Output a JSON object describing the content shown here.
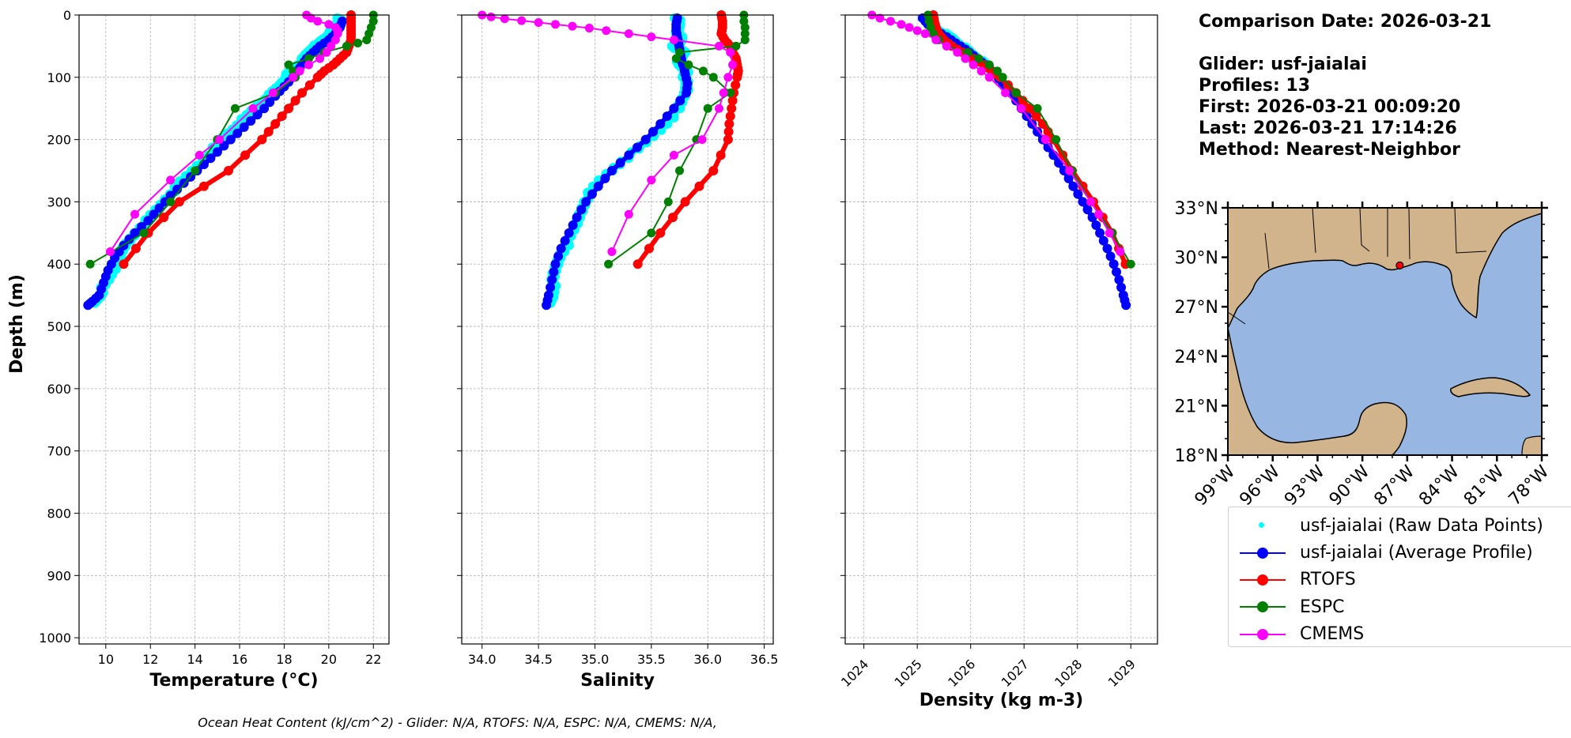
{
  "info": {
    "comparison_date": "Comparison Date: 2026-03-21",
    "glider": "Glider: usf-jaialai",
    "profiles": "Profiles: 13",
    "first": "First: 2026-03-21 00:09:20",
    "last": "Last: 2026-03-21 17:14:26",
    "method": "Method: Nearest-Neighbor"
  },
  "footer": "Ocean Heat Content (kJ/cm^2) - Glider: N/A,  RTOFS: N/A,  ESPC: N/A,  CMEMS: N/A,",
  "legend": [
    {
      "label": "usf-jaialai (Raw Data Points)",
      "color": "#00ffff",
      "style": "dot"
    },
    {
      "label": "usf-jaialai (Average Profile)",
      "color": "#0000ff",
      "style": "line-marker"
    },
    {
      "label": "RTOFS",
      "color": "#ff0000",
      "style": "line-marker"
    },
    {
      "label": "ESPC",
      "color": "#008000",
      "style": "line-marker"
    },
    {
      "label": "CMEMS",
      "color": "#ff00ff",
      "style": "line-marker"
    }
  ],
  "map": {
    "lat_labels": [
      "33°N",
      "30°N",
      "27°N",
      "24°N",
      "21°N",
      "18°N"
    ],
    "lon_labels": [
      "99°W",
      "96°W",
      "93°W",
      "90°W",
      "87°W",
      "84°W",
      "81°W",
      "78°W"
    ],
    "extent": {
      "lon": [
        -99,
        -78
      ],
      "lat": [
        18,
        33
      ]
    },
    "glider_position": {
      "lon": -87.5,
      "lat": 29.5
    },
    "land_color": "#d2b48c",
    "ocean_color": "#97b6e1"
  },
  "chart_data": [
    {
      "type": "line",
      "xlabel": "Temperature (°C)",
      "ylabel": "Depth (m)",
      "xlim": [
        8.8,
        22.7
      ],
      "ylim": [
        1010,
        0
      ],
      "xticks": [
        10,
        12,
        14,
        16,
        18,
        20,
        22
      ],
      "yticks": [
        0,
        100,
        200,
        300,
        400,
        500,
        600,
        700,
        800,
        900,
        1000
      ],
      "grid": true,
      "series": [
        {
          "name": "usf-jaialai (Raw Data Points)",
          "color": "#00ffff",
          "depth": [
            5,
            15,
            25,
            35,
            45,
            55,
            65,
            75,
            85,
            95,
            110,
            125,
            140,
            160,
            180,
            200,
            225,
            250,
            275,
            300,
            325,
            350,
            375,
            400,
            425,
            450,
            465
          ],
          "values": [
            20.5,
            20.4,
            20.2,
            19.9,
            19.6,
            19.2,
            19.0,
            18.8,
            18.5,
            18.2,
            17.9,
            17.5,
            17.0,
            16.4,
            15.8,
            15.2,
            14.6,
            13.9,
            13.2,
            12.6,
            12.0,
            11.3,
            10.8,
            10.5,
            10.1,
            9.7,
            9.4
          ]
        },
        {
          "name": "usf-jaialai (Average Profile)",
          "color": "#0000ff",
          "depth": [
            10,
            20,
            30,
            40,
            50,
            60,
            70,
            80,
            90,
            100,
            115,
            130,
            150,
            170,
            190,
            210,
            230,
            250,
            270,
            290,
            310,
            330,
            350,
            370,
            390,
            410,
            430,
            450,
            460,
            466
          ],
          "values": [
            20.6,
            20.5,
            20.3,
            20.0,
            19.6,
            19.3,
            19.0,
            18.8,
            18.6,
            18.4,
            18.0,
            17.6,
            17.1,
            16.5,
            15.9,
            15.3,
            14.7,
            14.1,
            13.5,
            12.9,
            12.4,
            11.9,
            11.3,
            10.8,
            10.4,
            10.1,
            9.9,
            9.7,
            9.4,
            9.2
          ]
        },
        {
          "name": "RTOFS",
          "color": "#ff0000",
          "depth": [
            0,
            10,
            20,
            30,
            40,
            50,
            60,
            70,
            80,
            90,
            100,
            125,
            150,
            175,
            200,
            250,
            300,
            350,
            400
          ],
          "values": [
            21.0,
            21.0,
            21.0,
            21.0,
            21.0,
            20.9,
            20.8,
            20.5,
            20.2,
            19.8,
            19.5,
            18.8,
            18.2,
            17.6,
            17.0,
            15.5,
            13.3,
            11.9,
            10.8
          ]
        },
        {
          "name": "ESPC",
          "color": "#008000",
          "depth": [
            0,
            10,
            20,
            30,
            40,
            45,
            50,
            60,
            70,
            80,
            90,
            100,
            125,
            150,
            200,
            250,
            300,
            350,
            400
          ],
          "values": [
            22.0,
            22.0,
            21.9,
            21.8,
            21.7,
            21.3,
            20.8,
            19.8,
            19.1,
            18.2,
            18.4,
            18.5,
            17.6,
            15.8,
            15.0,
            14.0,
            12.9,
            11.7,
            9.3
          ]
        },
        {
          "name": "CMEMS",
          "color": "#ff00ff",
          "depth": [
            0,
            5,
            10,
            15,
            20,
            25,
            30,
            40,
            50,
            60,
            70,
            80,
            90,
            100,
            125,
            150,
            200,
            225,
            265,
            320,
            380
          ],
          "values": [
            19.0,
            19.2,
            19.5,
            20.0,
            20.3,
            20.4,
            20.4,
            20.3,
            20.1,
            19.9,
            19.6,
            19.1,
            18.7,
            18.4,
            17.5,
            16.6,
            15.1,
            14.2,
            12.9,
            11.3,
            10.2
          ]
        }
      ]
    },
    {
      "type": "line",
      "xlabel": "Salinity",
      "ylabel": "",
      "xlim": [
        33.82,
        36.58
      ],
      "ylim": [
        1010,
        0
      ],
      "xticks": [
        34.0,
        34.5,
        35.0,
        35.5,
        36.0,
        36.5
      ],
      "yticks": [
        0,
        100,
        200,
        300,
        400,
        500,
        600,
        700,
        800,
        900,
        1000
      ],
      "grid": true,
      "series": [
        {
          "name": "usf-jaialai (Raw Data Points)",
          "color": "#00ffff",
          "depth": [
            5,
            15,
            30,
            40,
            50,
            60,
            70,
            80,
            90,
            100,
            120,
            150,
            180,
            210,
            240,
            270,
            300,
            330,
            360,
            390,
            420,
            450,
            465
          ],
          "values": [
            35.73,
            35.74,
            35.74,
            35.76,
            35.7,
            35.78,
            35.76,
            35.74,
            35.82,
            35.8,
            35.81,
            35.75,
            35.6,
            35.42,
            35.2,
            35.02,
            34.9,
            34.85,
            34.78,
            34.68,
            34.64,
            34.62,
            34.6
          ]
        },
        {
          "name": "usf-jaialai (Average Profile)",
          "color": "#0000ff",
          "depth": [
            5,
            15,
            25,
            35,
            45,
            55,
            65,
            75,
            85,
            95,
            110,
            125,
            150,
            175,
            200,
            225,
            250,
            275,
            300,
            325,
            350,
            375,
            400,
            425,
            450,
            466
          ],
          "values": [
            35.73,
            35.72,
            35.72,
            35.73,
            35.74,
            35.75,
            35.76,
            35.77,
            35.79,
            35.8,
            35.82,
            35.81,
            35.7,
            35.58,
            35.45,
            35.3,
            35.15,
            35.03,
            34.92,
            34.84,
            34.77,
            34.7,
            34.65,
            34.62,
            34.59,
            34.57
          ]
        },
        {
          "name": "RTOFS",
          "color": "#ff0000",
          "depth": [
            0,
            10,
            20,
            30,
            40,
            50,
            60,
            70,
            80,
            90,
            100,
            125,
            150,
            175,
            200,
            250,
            300,
            350,
            400
          ],
          "values": [
            36.12,
            36.13,
            36.13,
            36.12,
            36.15,
            36.2,
            36.22,
            36.25,
            36.26,
            36.27,
            36.26,
            36.23,
            36.21,
            36.19,
            36.18,
            36.05,
            35.8,
            35.58,
            35.38
          ]
        },
        {
          "name": "ESPC",
          "color": "#008000",
          "depth": [
            0,
            10,
            20,
            30,
            40,
            50,
            60,
            70,
            80,
            90,
            100,
            125,
            150,
            200,
            250,
            300,
            350,
            400
          ],
          "values": [
            36.32,
            36.32,
            36.33,
            36.33,
            36.33,
            36.25,
            35.75,
            35.72,
            35.83,
            35.96,
            36.05,
            36.2,
            36.0,
            35.9,
            35.75,
            35.65,
            35.5,
            35.12
          ]
        },
        {
          "name": "CMEMS",
          "color": "#ff00ff",
          "depth": [
            0,
            3,
            6,
            9,
            12,
            15,
            18,
            21,
            25,
            30,
            35,
            40,
            50,
            60,
            80,
            100,
            125,
            150,
            200,
            225,
            265,
            320,
            380
          ],
          "values": [
            34.0,
            34.08,
            34.2,
            34.35,
            34.5,
            34.65,
            34.8,
            34.95,
            35.1,
            35.3,
            35.5,
            35.7,
            36.1,
            36.2,
            36.22,
            36.18,
            36.14,
            36.1,
            35.95,
            35.7,
            35.5,
            35.3,
            35.15
          ]
        }
      ]
    },
    {
      "type": "line",
      "xlabel": "Density (kg m-3)",
      "ylabel": "",
      "xlim": [
        1023.65,
        1029.5
      ],
      "ylim": [
        1010,
        0
      ],
      "xticks": [
        1024,
        1025,
        1026,
        1027,
        1028,
        1029
      ],
      "yticks": [
        0,
        100,
        200,
        300,
        400,
        500,
        600,
        700,
        800,
        900,
        1000
      ],
      "grid": true,
      "series": [
        {
          "name": "usf-jaialai (Raw Data Points)",
          "color": "#00ffff",
          "depth": [
            5,
            15,
            25,
            35,
            45,
            55,
            65,
            75,
            85
          ],
          "values": [
            1025.15,
            1025.25,
            1025.4,
            1025.6,
            1025.75,
            1025.9,
            1026.05,
            1026.2,
            1026.3
          ]
        },
        {
          "name": "usf-jaialai (Average Profile)",
          "color": "#0000ff",
          "depth": [
            5,
            15,
            25,
            35,
            45,
            55,
            65,
            75,
            85,
            95,
            110,
            125,
            150,
            175,
            200,
            225,
            250,
            275,
            300,
            325,
            350,
            375,
            400,
            425,
            450,
            466
          ],
          "values": [
            1025.1,
            1025.2,
            1025.35,
            1025.55,
            1025.72,
            1025.9,
            1026.05,
            1026.2,
            1026.35,
            1026.45,
            1026.6,
            1026.75,
            1026.95,
            1027.15,
            1027.35,
            1027.55,
            1027.75,
            1027.92,
            1028.1,
            1028.28,
            1028.42,
            1028.56,
            1028.68,
            1028.78,
            1028.86,
            1028.91
          ]
        },
        {
          "name": "RTOFS",
          "color": "#ff0000",
          "depth": [
            0,
            10,
            20,
            30,
            40,
            50,
            60,
            70,
            80,
            90,
            100,
            125,
            150,
            175,
            200,
            250,
            300,
            350,
            400
          ],
          "values": [
            1025.3,
            1025.32,
            1025.35,
            1025.4,
            1025.5,
            1025.65,
            1025.85,
            1026.05,
            1026.25,
            1026.4,
            1026.55,
            1026.85,
            1027.1,
            1027.35,
            1027.55,
            1027.9,
            1028.3,
            1028.65,
            1028.9
          ]
        },
        {
          "name": "ESPC",
          "color": "#008000",
          "depth": [
            0,
            10,
            20,
            30,
            40,
            50,
            60,
            70,
            80,
            90,
            100,
            125,
            150,
            200,
            250,
            300,
            350,
            400
          ],
          "values": [
            1025.2,
            1025.22,
            1025.25,
            1025.3,
            1025.4,
            1025.55,
            1025.95,
            1026.15,
            1026.35,
            1026.5,
            1026.6,
            1026.85,
            1027.25,
            1027.6,
            1027.9,
            1028.25,
            1028.65,
            1029.0
          ]
        },
        {
          "name": "CMEMS",
          "color": "#ff00ff",
          "depth": [
            0,
            5,
            10,
            15,
            20,
            25,
            30,
            40,
            50,
            60,
            70,
            80,
            90,
            100,
            125,
            150,
            200,
            250,
            300,
            320,
            350,
            380
          ],
          "values": [
            1024.15,
            1024.3,
            1024.5,
            1024.7,
            1024.85,
            1025.0,
            1025.15,
            1025.35,
            1025.55,
            1025.75,
            1025.9,
            1026.05,
            1026.2,
            1026.35,
            1026.65,
            1026.95,
            1027.4,
            1027.85,
            1028.25,
            1028.4,
            1028.6,
            1028.8
          ]
        }
      ]
    }
  ]
}
